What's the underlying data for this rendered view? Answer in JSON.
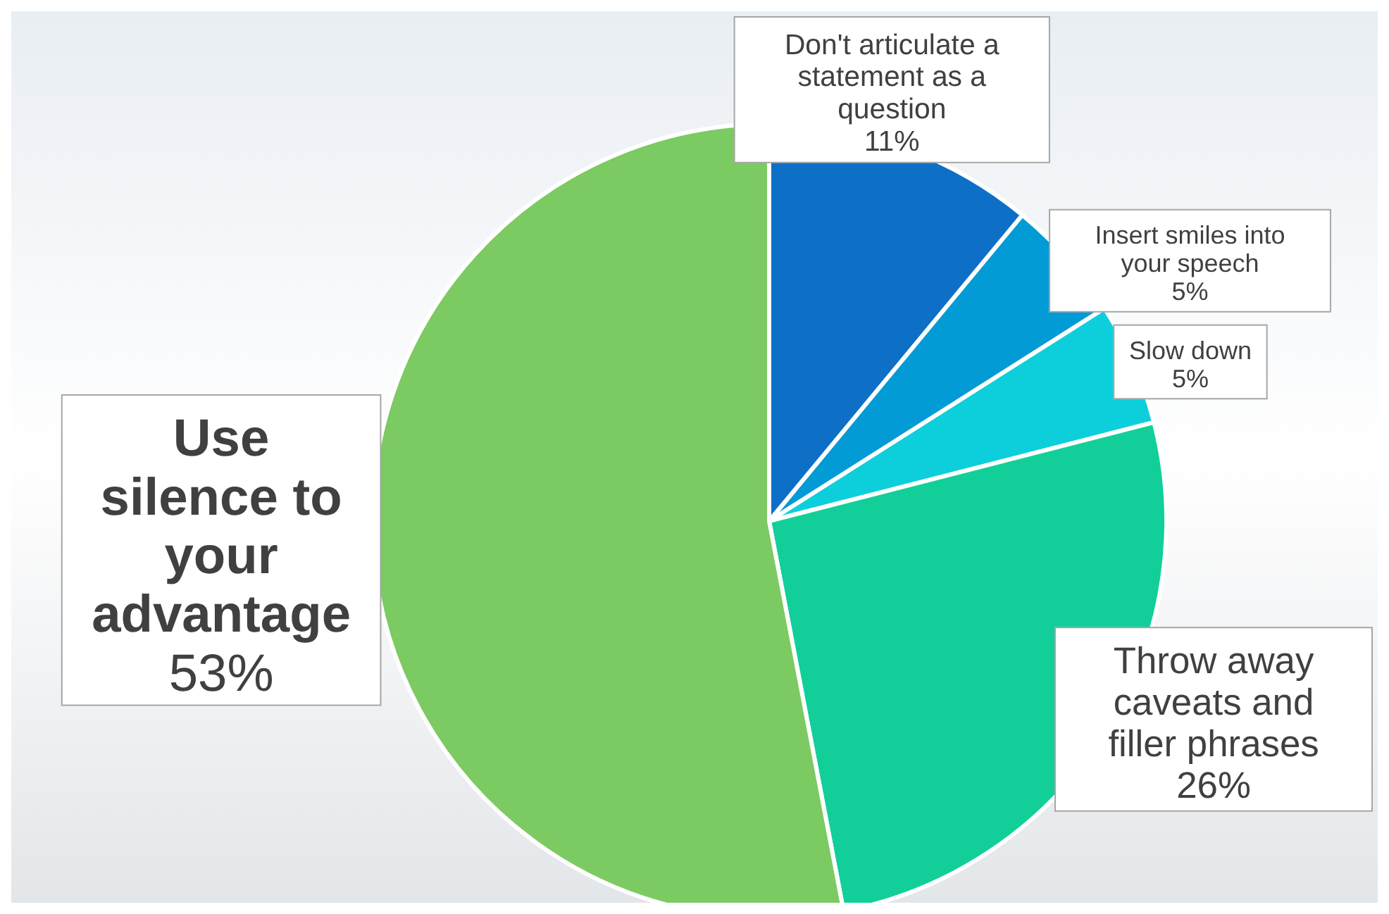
{
  "chart_data": {
    "type": "pie",
    "categories": [
      "Don't articulate a statement as a question",
      "Insert smiles into your speech",
      "Slow down",
      "Throw away caveats and filler phrases",
      "Use silence to your advantage"
    ],
    "values": [
      11,
      5,
      5,
      26,
      53
    ],
    "colors": [
      "#0e6fc6",
      "#039bd6",
      "#0dcfdc",
      "#12cf9a",
      "#7cca62"
    ],
    "value_labels": [
      "11%",
      "5%",
      "5%",
      "26%",
      "53%"
    ],
    "legend": false
  }
}
